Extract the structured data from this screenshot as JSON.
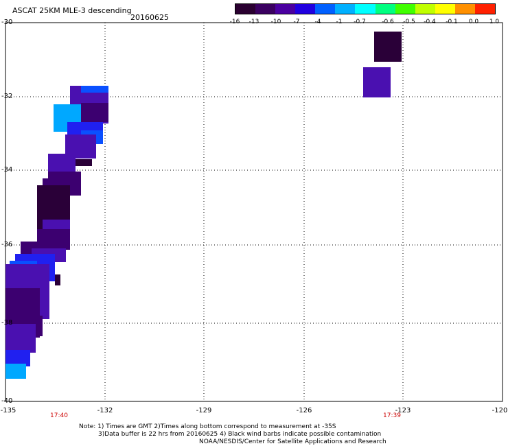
{
  "header": {
    "title": "ASCAT 25KM MLE-3 descending",
    "date": "20160625"
  },
  "colorbar": {
    "labels": [
      "-16",
      "-13",
      "-10",
      "-7",
      "-4",
      "-1",
      "-0.7",
      "-0.6",
      "-0.5",
      "-0.4",
      "-0.1",
      "0.0",
      "1.0"
    ],
    "colors": [
      "#2a0030",
      "#3a0060",
      "#4a00a0",
      "#2000e0",
      "#0060ff",
      "#00b0ff",
      "#00ffff",
      "#00ff80",
      "#40ff00",
      "#c0ff00",
      "#ffff00",
      "#ff9000",
      "#ff2000"
    ]
  },
  "map": {
    "y_axis_labels": [
      "-30",
      "-32",
      "-34",
      "-36",
      "-38",
      "-40"
    ],
    "x_axis_labels": [
      "-135",
      "-132",
      "-129",
      "-126",
      "-123",
      "-120"
    ],
    "time_labels": [
      "17:40",
      "17:39"
    ]
  },
  "notes": {
    "line1": "Note: 1) Times are GMT 2)Times along bottom correspond to measurement at -35S",
    "line2": "3)Data buffer is 22 hrs from 20160625 4) Black wind barbs indicate possible contamination",
    "line3": "NOAA/NESDIS/Center for Satellite Applications and Research"
  }
}
